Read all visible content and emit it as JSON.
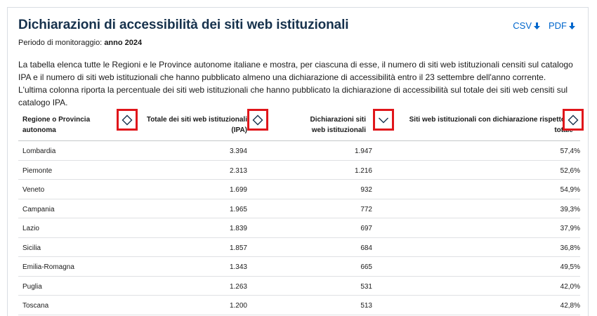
{
  "header": {
    "title": "Dichiarazioni di accessibilità dei siti web istituzionali",
    "period_label": "Periodo di monitoraggio:",
    "period_value": "anno 2024"
  },
  "downloads": {
    "csv_label": "CSV",
    "pdf_label": "PDF"
  },
  "description": {
    "line1": "La tabella elenca tutte le Regioni e le Province autonome italiane e mostra, per ciascuna di esse, il numero di siti web istituzionali censiti sul catalogo IPA e il numero di siti web istituzionali che hanno pubblicato almeno una dichiarazione di accessibilità entro il 23 settembre dell'anno corrente.",
    "line2": "L'ultima colonna riporta la percentuale dei siti web istituzionali che hanno pubblicato la dichiarazione di accessibilità sul totale dei siti web censiti sul catalogo IPA."
  },
  "table": {
    "headers": {
      "region": "Regione o Provincia autonoma",
      "total": "Totale dei siti web istituzionali (IPA)",
      "declarations": "Dichiarazioni siti web istituzionali",
      "percentage": "Siti web istituzionali con dichiarazione rispetto al totale"
    },
    "sort_states": {
      "region": "unsorted",
      "total": "unsorted",
      "declarations": "descending",
      "percentage": "unsorted"
    },
    "rows": [
      {
        "region": "Lombardia",
        "total": "3.394",
        "declarations": "1.947",
        "percentage": "57,4%"
      },
      {
        "region": "Piemonte",
        "total": "2.313",
        "declarations": "1.216",
        "percentage": "52,6%"
      },
      {
        "region": "Veneto",
        "total": "1.699",
        "declarations": "932",
        "percentage": "54,9%"
      },
      {
        "region": "Campania",
        "total": "1.965",
        "declarations": "772",
        "percentage": "39,3%"
      },
      {
        "region": "Lazio",
        "total": "1.839",
        "declarations": "697",
        "percentage": "37,9%"
      },
      {
        "region": "Sicilia",
        "total": "1.857",
        "declarations": "684",
        "percentage": "36,8%"
      },
      {
        "region": "Emilia-Romagna",
        "total": "1.343",
        "declarations": "665",
        "percentage": "49,5%"
      },
      {
        "region": "Puglia",
        "total": "1.263",
        "declarations": "531",
        "percentage": "42,0%"
      },
      {
        "region": "Toscana",
        "total": "1.200",
        "declarations": "513",
        "percentage": "42,8%"
      }
    ]
  },
  "colors": {
    "title": "#17324d",
    "link": "#0066cc",
    "highlight": "#e0161b"
  }
}
